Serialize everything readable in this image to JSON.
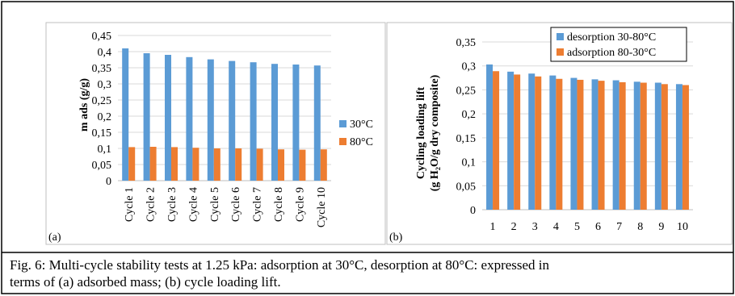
{
  "caption": {
    "line1": "Fig. 6: Multi-cycle stability tests at 1.25 kPa: adsorption at 30°C, desorption at 80°C: expressed in",
    "line2": "terms of (a) adsorbed mass; (b) cycle loading lift."
  },
  "colors": {
    "blue": "#5b9bd5",
    "orange": "#ed7d31",
    "frame": "#000000",
    "inner_border": "#bfbfbf"
  },
  "chart_data": [
    {
      "panel_label": "(a)",
      "type": "bar",
      "categories": [
        "Cycle 1",
        "Cycle 2",
        "Cycle 3",
        "Cycle 4",
        "Cycle 5",
        "Cycle 6",
        "Cycle 7",
        "Cycle 8",
        "Cycle 9",
        "Cycle 10"
      ],
      "series": [
        {
          "name": "30°C",
          "color": "#5b9bd5",
          "values": [
            0.41,
            0.395,
            0.39,
            0.383,
            0.376,
            0.371,
            0.367,
            0.362,
            0.36,
            0.357
          ]
        },
        {
          "name": "80°C",
          "color": "#ed7d31",
          "values": [
            0.104,
            0.105,
            0.104,
            0.102,
            0.1,
            0.1,
            0.099,
            0.097,
            0.096,
            0.097
          ]
        }
      ],
      "yticks": [
        "0",
        "0,05",
        "0,1",
        "0,15",
        "0,2",
        "0,25",
        "0,3",
        "0,35",
        "0,4",
        "0,45"
      ],
      "ylim": [
        0,
        0.45
      ],
      "ylabel": "m ads (g/g)",
      "xlabel": "",
      "title": "",
      "grid": true,
      "legend_position": "right"
    },
    {
      "panel_label": "(b)",
      "type": "bar",
      "categories": [
        "1",
        "2",
        "3",
        "4",
        "5",
        "6",
        "7",
        "8",
        "9",
        "10"
      ],
      "series": [
        {
          "name": "desorption 30-80°C",
          "color": "#5b9bd5",
          "values": [
            0.303,
            0.288,
            0.284,
            0.28,
            0.275,
            0.272,
            0.27,
            0.267,
            0.265,
            0.262
          ]
        },
        {
          "name": "adsorption 80-30°C",
          "color": "#ed7d31",
          "values": [
            0.289,
            0.282,
            0.278,
            0.273,
            0.271,
            0.269,
            0.266,
            0.265,
            0.262,
            0.26
          ]
        }
      ],
      "yticks": [
        "0",
        "0,05",
        "0,1",
        "0,15",
        "0,2",
        "0,25",
        "0,3",
        "0,35"
      ],
      "ylim": [
        0,
        0.35
      ],
      "ylabel_line1": "Cycling loading lift",
      "ylabel_line2": "(g H₂O/g dry composite)",
      "xlabel": "",
      "title": "",
      "grid": true,
      "legend_position": "top-right"
    }
  ]
}
